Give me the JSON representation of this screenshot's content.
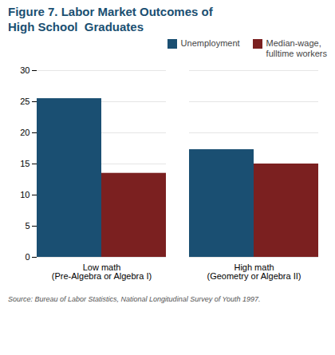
{
  "chart_data": {
    "type": "bar",
    "title": "Figure 7. Labor Market Outcomes of\nHigh School  Graduates",
    "categories": [
      "Low math\n(Pre-Algebra or Algebra I)",
      "High math\n(Geometry or Algebra II)"
    ],
    "series": [
      {
        "name": "Unemployment",
        "color": "#1a4f72",
        "values": [
          25.5,
          17.3
        ]
      },
      {
        "name": "Median-wage,\nfulltime workers",
        "color": "#7b2020",
        "values": [
          13.5,
          15.0
        ]
      }
    ],
    "ylim": [
      0,
      30
    ],
    "yticks": [
      0,
      5,
      10,
      15,
      20,
      25,
      30
    ],
    "grid": true,
    "legend": "upper right",
    "annotations": [
      "Source: Bureau of Labor Statistics, National Longitudinal Survey of Youth 1997."
    ]
  }
}
